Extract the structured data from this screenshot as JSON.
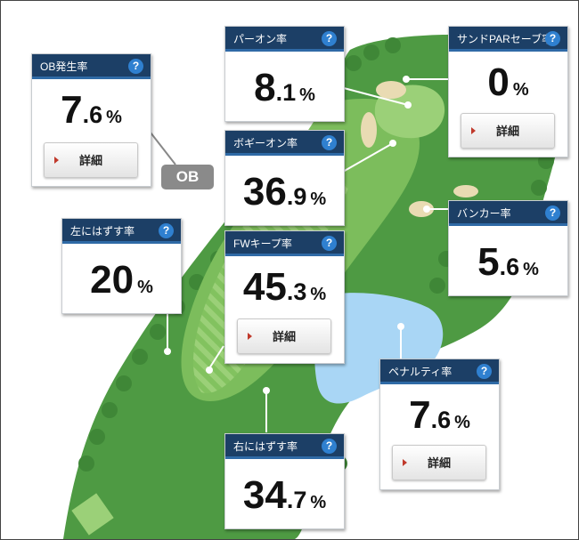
{
  "course": {
    "ob_tag": "OB"
  },
  "stats": {
    "ob": {
      "label": "OB発生率",
      "int": "7",
      "dec": ".6",
      "unit": "%",
      "detail_label": "詳細"
    },
    "par_on": {
      "label": "パーオン率",
      "int": "8",
      "dec": ".1",
      "unit": "%"
    },
    "sand_save": {
      "label": "サンドPARセーブ率",
      "int": "0",
      "dec": "",
      "unit": "%",
      "detail_label": "詳細"
    },
    "bogey_on": {
      "label": "ボギーオン率",
      "int": "36",
      "dec": ".9",
      "unit": "%"
    },
    "left_miss": {
      "label": "左にはずす率",
      "int": "20",
      "dec": "",
      "unit": "%"
    },
    "bunker": {
      "label": "バンカー率",
      "int": "5",
      "dec": ".6",
      "unit": "%"
    },
    "fw_keep": {
      "label": "FWキープ率",
      "int": "45",
      "dec": ".3",
      "unit": "%",
      "detail_label": "詳細"
    },
    "penalty": {
      "label": "ペナルティ率",
      "int": "7",
      "dec": ".6",
      "unit": "%",
      "detail_label": "詳細"
    },
    "right_miss": {
      "label": "右にはずす率",
      "int": "34",
      "dec": ".7",
      "unit": "%"
    }
  },
  "help_glyph": "?",
  "colors": {
    "header": "#1c3f66",
    "help": "#2f80d0",
    "rough": "#4e9a43",
    "fairway": "#7cbd5c",
    "water": "#a9d6f5",
    "sand": "#e9dbb3"
  }
}
